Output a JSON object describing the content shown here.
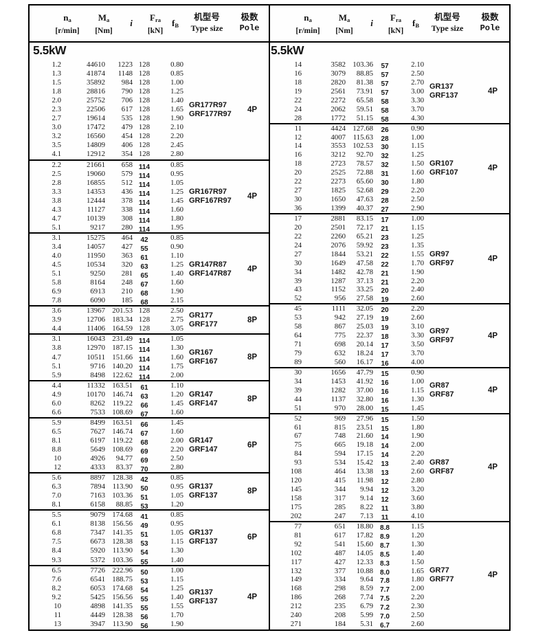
{
  "header": {
    "col_na": {
      "main": "n",
      "sub": "a",
      "unit": "[r/min]"
    },
    "col_ma": {
      "main": "M",
      "sub": "a",
      "unit": "[Nm]"
    },
    "col_i": {
      "main": "i"
    },
    "col_fra": {
      "main": "F",
      "sub": "ra",
      "unit": "[kN]"
    },
    "col_fb": {
      "main": "f",
      "sub": "B"
    },
    "col_type": {
      "line1": "机型号",
      "line2": "Type size"
    },
    "col_pole": {
      "line1": "极数",
      "line2": "Pole"
    }
  },
  "left_table": {
    "power": "5.5kW",
    "sections": [
      {
        "type1": "GR177R97",
        "type2": "GRF177R97",
        "pole": "4P",
        "fra_style": "plain",
        "rows": [
          [
            "1.2",
            "44610",
            "1223",
            "128",
            "0.80"
          ],
          [
            "1.3",
            "41874",
            "1148",
            "128",
            "0.85"
          ],
          [
            "1.5",
            "35892",
            "984",
            "128",
            "1.00"
          ],
          [
            "1.8",
            "28816",
            "790",
            "128",
            "1.25"
          ],
          [
            "2.0",
            "25752",
            "706",
            "128",
            "1.40"
          ],
          [
            "2.3",
            "22506",
            "617",
            "128",
            "1.65"
          ],
          [
            "2.7",
            "19614",
            "535",
            "128",
            "1.90"
          ],
          [
            "3.0",
            "17472",
            "479",
            "128",
            "2.10"
          ],
          [
            "3.2",
            "16560",
            "454",
            "128",
            "2.20"
          ],
          [
            "3.5",
            "14809",
            "406",
            "128",
            "2.45"
          ],
          [
            "4.1",
            "12912",
            "354",
            "128",
            "2.80"
          ]
        ]
      },
      {
        "type1": "GR167R97",
        "type2": "GRF167R97",
        "pole": "4P",
        "fra_style": "bold",
        "rows": [
          [
            "2.2",
            "21661",
            "658",
            "114",
            "0.85"
          ],
          [
            "2.5",
            "19060",
            "579",
            "114",
            "0.95"
          ],
          [
            "2.8",
            "16855",
            "512",
            "114",
            "1.05"
          ],
          [
            "3.3",
            "14353",
            "436",
            "114",
            "1.25"
          ],
          [
            "3.8",
            "12444",
            "378",
            "114",
            "1.45"
          ],
          [
            "4.3",
            "11127",
            "338",
            "114",
            "1.60"
          ],
          [
            "4.7",
            "10139",
            "308",
            "114",
            "1.80"
          ],
          [
            "5.1",
            "9217",
            "280",
            "114",
            "1.95"
          ]
        ]
      },
      {
        "type1": "GR147R87",
        "type2": "GRF147R87",
        "pole": "4P",
        "fra_style": "bold",
        "rows": [
          [
            "3.1",
            "15275",
            "464",
            "42",
            "0.85"
          ],
          [
            "3.4",
            "14057",
            "427",
            "55",
            "0.90"
          ],
          [
            "4.0",
            "11950",
            "363",
            "61",
            "1.10"
          ],
          [
            "4.5",
            "10534",
            "320",
            "63",
            "1.25"
          ],
          [
            "5.1",
            "9250",
            "281",
            "65",
            "1.40"
          ],
          [
            "5.8",
            "8164",
            "248",
            "67",
            "1.60"
          ],
          [
            "6.9",
            "6913",
            "210",
            "68",
            "1.90"
          ],
          [
            "7.8",
            "6090",
            "185",
            "68",
            "2.15"
          ]
        ]
      },
      {
        "type1": "GR177",
        "type2": "GRF177",
        "pole": "8P",
        "fra_style": "plain",
        "rows": [
          [
            "3.6",
            "13967",
            "201.53",
            "128",
            "2.50"
          ],
          [
            "3.9",
            "12706",
            "183.34",
            "128",
            "2.75"
          ],
          [
            "4.4",
            "11406",
            "164.59",
            "128",
            "3.05"
          ]
        ]
      },
      {
        "type1": "GR167",
        "type2": "GRF167",
        "pole": "8P",
        "fra_style": "bold",
        "rows": [
          [
            "3.1",
            "16043",
            "231.49",
            "114",
            "1.05"
          ],
          [
            "3.8",
            "12970",
            "187.15",
            "114",
            "1.30"
          ],
          [
            "4.7",
            "10511",
            "151.66",
            "114",
            "1.60"
          ],
          [
            "5.1",
            "9716",
            "140.20",
            "114",
            "1.75"
          ],
          [
            "5.9",
            "8498",
            "122.62",
            "114",
            "2.00"
          ]
        ]
      },
      {
        "type1": "GR147",
        "type2": "GRF147",
        "pole": "8P",
        "fra_style": "bold",
        "rows": [
          [
            "4.4",
            "11332",
            "163.51",
            "61",
            "1.10"
          ],
          [
            "4.9",
            "10170",
            "146.74",
            "63",
            "1.20"
          ],
          [
            "6.0",
            "8262",
            "119.22",
            "66",
            "1.45"
          ],
          [
            "6.6",
            "7533",
            "108.69",
            "67",
            "1.60"
          ]
        ]
      },
      {
        "type1": "GR147",
        "type2": "GRF147",
        "pole": "6P",
        "fra_style": "bold",
        "rows": [
          [
            "5.9",
            "8499",
            "163.51",
            "66",
            "1.45"
          ],
          [
            "6.5",
            "7627",
            "146.74",
            "67",
            "1.60"
          ],
          [
            "8.1",
            "6197",
            "119.22",
            "68",
            "2.00"
          ],
          [
            "8.8",
            "5649",
            "108.69",
            "69",
            "2.20"
          ],
          [
            "10",
            "4926",
            "94.77",
            "69",
            "2.50"
          ],
          [
            "12",
            "4333",
            "83.37",
            "70",
            "2.80"
          ]
        ]
      },
      {
        "type1": "GR137",
        "type2": "GRF137",
        "pole": "8P",
        "fra_style": "bold",
        "rows": [
          [
            "5.6",
            "8897",
            "128.38",
            "42",
            "0.85"
          ],
          [
            "6.3",
            "7894",
            "113.90",
            "50",
            "0.95"
          ],
          [
            "7.0",
            "7163",
            "103.36",
            "51",
            "1.05"
          ],
          [
            "8.1",
            "6158",
            "88.85",
            "53",
            "1.20"
          ]
        ]
      },
      {
        "type1": "GR137",
        "type2": "GRF137",
        "pole": "6P",
        "fra_style": "bold",
        "rows": [
          [
            "5.5",
            "9079",
            "174.68",
            "41",
            "0.85"
          ],
          [
            "6.1",
            "8138",
            "156.56",
            "49",
            "0.95"
          ],
          [
            "6.8",
            "7347",
            "141.35",
            "51",
            "1.05"
          ],
          [
            "7.5",
            "6673",
            "128.38",
            "53",
            "1.15"
          ],
          [
            "8.4",
            "5920",
            "113.90",
            "54",
            "1.30"
          ],
          [
            "9.3",
            "5372",
            "103.36",
            "55",
            "1.40"
          ]
        ]
      },
      {
        "type1": "GR137",
        "type2": "GRF137",
        "pole": "4P",
        "fra_style": "bold",
        "rows": [
          [
            "6.5",
            "7726",
            "222.96",
            "50",
            "1.00"
          ],
          [
            "7.6",
            "6541",
            "188.75",
            "53",
            "1.15"
          ],
          [
            "8.2",
            "6053",
            "174.68",
            "54",
            "1.25"
          ],
          [
            "9.2",
            "5425",
            "156.56",
            "55",
            "1.40"
          ],
          [
            "10",
            "4898",
            "141.35",
            "55",
            "1.55"
          ],
          [
            "11",
            "4449",
            "128.38",
            "56",
            "1.70"
          ],
          [
            "13",
            "3947",
            "113.90",
            "56",
            "1.90"
          ]
        ]
      }
    ]
  },
  "right_table": {
    "power": "5.5kW",
    "sections": [
      {
        "type1": "GR137",
        "type2": "GRF137",
        "pole": "4P",
        "fra_style": "bold",
        "rows": [
          [
            "14",
            "3582",
            "103.36",
            "57",
            "2.10"
          ],
          [
            "16",
            "3079",
            "88.85",
            "57",
            "2.50"
          ],
          [
            "18",
            "2820",
            "81.38",
            "57",
            "2.70"
          ],
          [
            "19",
            "2561",
            "73.91",
            "57",
            "3.00"
          ],
          [
            "22",
            "2272",
            "65.58",
            "58",
            "3.30"
          ],
          [
            "24",
            "2062",
            "59.51",
            "58",
            "3.70"
          ],
          [
            "28",
            "1772",
            "51.15",
            "58",
            "4.30"
          ]
        ]
      },
      {
        "type1": "GR107",
        "type2": "GRF107",
        "pole": "4P",
        "fra_style": "bold",
        "rows": [
          [
            "11",
            "4424",
            "127.68",
            "26",
            "0.90"
          ],
          [
            "12",
            "4007",
            "115.63",
            "28",
            "1.00"
          ],
          [
            "14",
            "3553",
            "102.53",
            "30",
            "1.15"
          ],
          [
            "16",
            "3212",
            "92.70",
            "32",
            "1.25"
          ],
          [
            "18",
            "2723",
            "78.57",
            "32",
            "1.50"
          ],
          [
            "20",
            "2525",
            "72.88",
            "31",
            "1.60"
          ],
          [
            "22",
            "2273",
            "65.60",
            "30",
            "1.80"
          ],
          [
            "27",
            "1825",
            "52.68",
            "29",
            "2.20"
          ],
          [
            "30",
            "1650",
            "47.63",
            "28",
            "2.50"
          ],
          [
            "36",
            "1399",
            "40.37",
            "27",
            "2.90"
          ]
        ]
      },
      {
        "type1": "GR97",
        "type2": "GRF97",
        "pole": "4P",
        "fra_style": "bold",
        "rows": [
          [
            "17",
            "2881",
            "83.15",
            "17",
            "1.00"
          ],
          [
            "20",
            "2501",
            "72.17",
            "21",
            "1.15"
          ],
          [
            "22",
            "2260",
            "65.21",
            "23",
            "1.25"
          ],
          [
            "24",
            "2076",
            "59.92",
            "23",
            "1.35"
          ],
          [
            "27",
            "1844",
            "53.21",
            "22",
            "1.55"
          ],
          [
            "30",
            "1649",
            "47.58",
            "22",
            "1.70"
          ],
          [
            "34",
            "1482",
            "42.78",
            "21",
            "1.90"
          ],
          [
            "39",
            "1287",
            "37.13",
            "21",
            "2.20"
          ],
          [
            "43",
            "1152",
            "33.25",
            "20",
            "2.40"
          ],
          [
            "52",
            "956",
            "27.58",
            "19",
            "2.60"
          ]
        ]
      },
      {
        "type1": "GR97",
        "type2": "GRF97",
        "pole": "4P",
        "fra_style": "bold",
        "rows": [
          [
            "45",
            "1111",
            "32.05",
            "20",
            "2.20"
          ],
          [
            "53",
            "942",
            "27.19",
            "19",
            "2.60"
          ],
          [
            "58",
            "867",
            "25.03",
            "19",
            "3.10"
          ],
          [
            "64",
            "775",
            "22.37",
            "18",
            "3.30"
          ],
          [
            "71",
            "698",
            "20.14",
            "17",
            "3.50"
          ],
          [
            "79",
            "632",
            "18.24",
            "17",
            "3.70"
          ],
          [
            "89",
            "560",
            "16.17",
            "16",
            "4.00"
          ]
        ]
      },
      {
        "type1": "GR87",
        "type2": "GRF87",
        "pole": "4P",
        "fra_style": "bold",
        "rows": [
          [
            "30",
            "1656",
            "47.79",
            "15",
            "0.90"
          ],
          [
            "34",
            "1453",
            "41.92",
            "16",
            "1.00"
          ],
          [
            "39",
            "1282",
            "37.00",
            "16",
            "1.15"
          ],
          [
            "44",
            "1137",
            "32.80",
            "16",
            "1.30"
          ],
          [
            "51",
            "970",
            "28.00",
            "15",
            "1.45"
          ]
        ]
      },
      {
        "type1": "GR87",
        "type2": "GRF87",
        "pole": "4P",
        "fra_style": "bold",
        "rows": [
          [
            "52",
            "969",
            "27.96",
            "15",
            "1.50"
          ],
          [
            "61",
            "815",
            "23.51",
            "15",
            "1.80"
          ],
          [
            "67",
            "748",
            "21.60",
            "14",
            "1.90"
          ],
          [
            "75",
            "665",
            "19.18",
            "14",
            "2.00"
          ],
          [
            "84",
            "594",
            "17.15",
            "14",
            "2.20"
          ],
          [
            "93",
            "534",
            "15.42",
            "13",
            "2.40"
          ],
          [
            "108",
            "464",
            "13.38",
            "13",
            "2.60"
          ],
          [
            "120",
            "415",
            "11.98",
            "12",
            "2.80"
          ],
          [
            "145",
            "344",
            "9.94",
            "12",
            "3.20"
          ],
          [
            "158",
            "317",
            "9.14",
            "12",
            "3.60"
          ],
          [
            "175",
            "285",
            "8.22",
            "11",
            "3.80"
          ],
          [
            "202",
            "247",
            "7.13",
            "11",
            "4.10"
          ]
        ]
      },
      {
        "type1": "GR77",
        "type2": "GRF77",
        "pole": "4P",
        "fra_style": "bold",
        "rows": [
          [
            "77",
            "651",
            "18.80",
            "8.8",
            "1.15"
          ],
          [
            "81",
            "617",
            "17.82",
            "8.9",
            "1.20"
          ],
          [
            "92",
            "541",
            "15.60",
            "8.7",
            "1.30"
          ],
          [
            "102",
            "487",
            "14.05",
            "8.5",
            "1.40"
          ],
          [
            "117",
            "427",
            "12.33",
            "8.3",
            "1.50"
          ],
          [
            "132",
            "377",
            "10.88",
            "8.0",
            "1.65"
          ],
          [
            "149",
            "334",
            "9.64",
            "7.8",
            "1.80"
          ],
          [
            "168",
            "298",
            "8.59",
            "7.7",
            "2.00"
          ],
          [
            "186",
            "268",
            "7.74",
            "7.5",
            "2.20"
          ],
          [
            "212",
            "235",
            "6.79",
            "7.2",
            "2.30"
          ],
          [
            "240",
            "208",
            "5.99",
            "7.0",
            "2.50"
          ],
          [
            "271",
            "184",
            "5.31",
            "6.7",
            "2.60"
          ]
        ]
      }
    ]
  }
}
